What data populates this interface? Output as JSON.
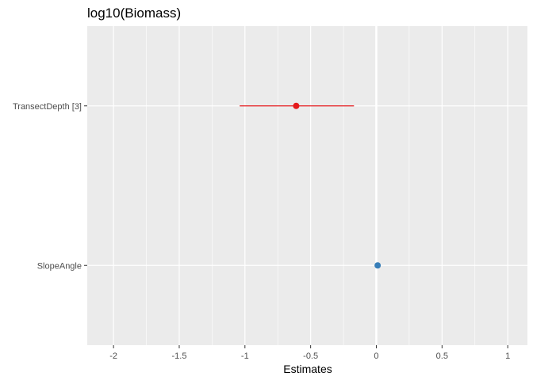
{
  "chart_data": {
    "type": "forest",
    "title": "log10(Biomass)",
    "xlabel": "Estimates",
    "ylabel": "",
    "xlim": [
      -2.2,
      1.15
    ],
    "x_ticks": [
      -2,
      -1.5,
      -1,
      -0.5,
      0,
      0.5,
      1
    ],
    "x_tick_labels": [
      "-2",
      "-1.5",
      "-1",
      "-0.5",
      "0",
      "0.5",
      "1"
    ],
    "reference_line": 0,
    "terms": [
      {
        "label": "TransectDepth [3]",
        "estimate": -0.61,
        "ci_low": -1.04,
        "ci_high": -0.17,
        "color": "#e41a1c"
      },
      {
        "label": "SlopeAngle",
        "estimate": 0.01,
        "ci_low": -0.01,
        "ci_high": 0.03,
        "color": "#377eb8"
      }
    ],
    "grid": true,
    "legend": "none",
    "colors": {
      "panel": "#ebebeb",
      "grid_major": "#ffffff",
      "positive": "#377eb8",
      "negative": "#e41a1c"
    }
  }
}
